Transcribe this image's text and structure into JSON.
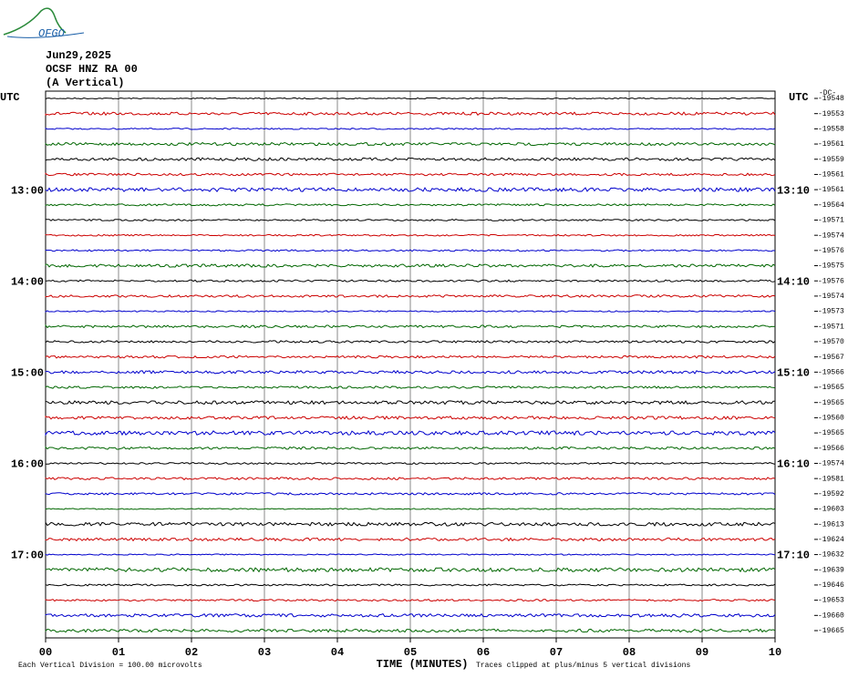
{
  "logo": "OFGO",
  "chart_data": {
    "type": "helicorder",
    "header": [
      "Jun29,2025",
      "OCSF HNZ RA 00",
      "(A Vertical)"
    ],
    "left_title": "UTC",
    "right_title": "UTC",
    "dc_title": "-DC-",
    "left_labels": [
      null,
      null,
      null,
      null,
      null,
      null,
      "13:00",
      null,
      null,
      null,
      null,
      null,
      "14:00",
      null,
      null,
      null,
      null,
      null,
      "15:00",
      null,
      null,
      null,
      null,
      null,
      "16:00",
      null,
      null,
      null,
      null,
      null,
      "17:00",
      null,
      null,
      null,
      null,
      null
    ],
    "right_labels": [
      null,
      null,
      null,
      null,
      null,
      null,
      "13:10",
      null,
      null,
      null,
      null,
      null,
      "14:10",
      null,
      null,
      null,
      null,
      null,
      "15:10",
      null,
      null,
      null,
      null,
      null,
      "16:10",
      null,
      null,
      null,
      null,
      null,
      "17:10",
      null,
      null,
      null,
      null,
      null
    ],
    "values": [
      -19548,
      -19553,
      -19558,
      -19561,
      -19559,
      -19561,
      -19561,
      -19564,
      -19571,
      -19574,
      -19576,
      -19575,
      -19576,
      -19574,
      -19573,
      -19571,
      -19570,
      -19567,
      -19566,
      -19565,
      -19565,
      -19560,
      -19565,
      -19566,
      -19574,
      -19581,
      -19592,
      -19603,
      -19613,
      -19624,
      -19632,
      -19639,
      -19646,
      -19653,
      -19660,
      -19665
    ],
    "colors": [
      "#000000",
      "#cc0000",
      "#0000cc",
      "#006600"
    ],
    "xlim": [
      0,
      10
    ],
    "xticks": [
      {
        "value": 0,
        "label": "00"
      },
      {
        "value": 1,
        "label": "01"
      },
      {
        "value": 2,
        "label": "02"
      },
      {
        "value": 3,
        "label": "03"
      },
      {
        "value": 4,
        "label": "04"
      },
      {
        "value": 5,
        "label": "05"
      },
      {
        "value": 6,
        "label": "06"
      },
      {
        "value": 7,
        "label": "07"
      },
      {
        "value": 8,
        "label": "08"
      },
      {
        "value": 9,
        "label": "09"
      },
      {
        "value": 10,
        "label": "10"
      }
    ],
    "xlabel": "TIME (MINUTES)",
    "scale_note": "Each Vertical Division =  100.00 microvolts",
    "clip_note": "Traces clipped at plus/minus 5 vertical divisions",
    "grid": true
  }
}
